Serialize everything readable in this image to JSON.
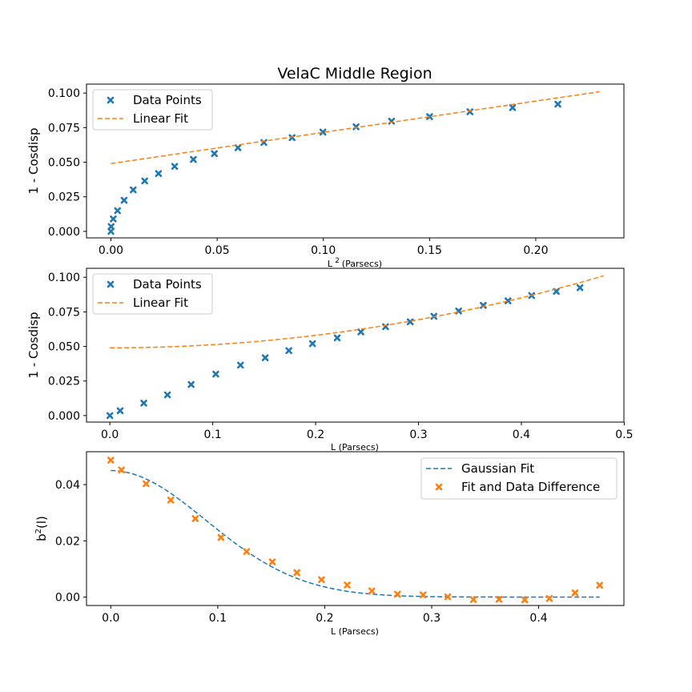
{
  "figure": {
    "title": "VelaC Middle Region"
  },
  "colors": {
    "blue": "#1f77b4",
    "orange": "#ff7f0e",
    "axis": "#000000",
    "legend_border": "#cccccc"
  },
  "chart_data": [
    {
      "type": "scatter",
      "xlabel_main": "L",
      "xlabel_sup": "2",
      "xlabel_rest": "(Parsecs)",
      "ylabel": "1 - Cosdisp",
      "xlim": [
        -0.0115,
        0.2415
      ],
      "ylim": [
        -0.0047,
        0.1065
      ],
      "xticks": [
        0.0,
        0.05,
        0.1,
        0.15,
        0.2
      ],
      "xtick_labels": [
        "0.00",
        "0.05",
        "0.10",
        "0.15",
        "0.20"
      ],
      "yticks": [
        0.0,
        0.025,
        0.05,
        0.075,
        0.1
      ],
      "ytick_labels": [
        "0.000",
        "0.025",
        "0.050",
        "0.075",
        "0.100"
      ],
      "legend_position": "upper-left",
      "series": [
        {
          "name": "Data Points",
          "kind": "markers",
          "color": "#1f77b4",
          "x": [
            0.0,
            0.0001,
            0.0011,
            0.0031,
            0.0062,
            0.0105,
            0.0159,
            0.0224,
            0.03,
            0.0388,
            0.0487,
            0.0598,
            0.072,
            0.0853,
            0.0998,
            0.1154,
            0.1321,
            0.15,
            0.169,
            0.1891,
            0.2104
          ],
          "y": [
            0.0,
            0.0035,
            0.009,
            0.015,
            0.0225,
            0.03,
            0.0365,
            0.0418,
            0.047,
            0.052,
            0.0562,
            0.0605,
            0.0643,
            0.0678,
            0.0718,
            0.0756,
            0.0797,
            0.083,
            0.0865,
            0.0895,
            0.092
          ]
        },
        {
          "name": "Linear Fit",
          "kind": "dashed-line",
          "color": "#ff7f0e",
          "x": [
            0.0,
            0.23
          ],
          "y": [
            0.049,
            0.101
          ]
        }
      ]
    },
    {
      "type": "scatter",
      "xlabel": "L (Parsecs)",
      "ylabel": "1 - Cosdisp",
      "xlim": [
        -0.0227,
        0.4997
      ],
      "ylim": [
        -0.0047,
        0.1065
      ],
      "xticks": [
        0.0,
        0.1,
        0.2,
        0.3,
        0.4,
        0.5
      ],
      "xtick_labels": [
        "0.0",
        "0.1",
        "0.2",
        "0.3",
        "0.4",
        "0.5"
      ],
      "yticks": [
        0.0,
        0.025,
        0.05,
        0.075,
        0.1
      ],
      "ytick_labels": [
        "0.000",
        "0.025",
        "0.050",
        "0.075",
        "0.100"
      ],
      "legend_position": "upper-left",
      "series": [
        {
          "name": "Data Points",
          "kind": "markers",
          "color": "#1f77b4",
          "x": [
            0.0,
            0.01,
            0.033,
            0.056,
            0.079,
            0.103,
            0.127,
            0.151,
            0.174,
            0.197,
            0.221,
            0.244,
            0.268,
            0.292,
            0.315,
            0.339,
            0.363,
            0.387,
            0.41,
            0.434,
            0.457
          ],
          "y": [
            0.0,
            0.0035,
            0.009,
            0.015,
            0.0225,
            0.03,
            0.0365,
            0.0418,
            0.047,
            0.052,
            0.0562,
            0.0605,
            0.0643,
            0.0678,
            0.0718,
            0.0756,
            0.0797,
            0.083,
            0.0868,
            0.0898,
            0.0925
          ]
        },
        {
          "name": "Linear Fit",
          "kind": "dashed-curve",
          "color": "#ff7f0e",
          "curve": {
            "intercept": 0.049,
            "slope_vs_x_squared": 0.2261,
            "x_start": 0.0,
            "x_end": 0.48
          }
        }
      ]
    },
    {
      "type": "scatter",
      "xlabel": "L (Parsecs)",
      "ylabel_main": "b",
      "ylabel_sup": "2",
      "ylabel_rest": "(l)",
      "xlim": [
        -0.0227,
        0.4797
      ],
      "ylim": [
        -0.003,
        0.0517
      ],
      "xticks": [
        0.0,
        0.1,
        0.2,
        0.3,
        0.4
      ],
      "xtick_labels": [
        "0.0",
        "0.1",
        "0.2",
        "0.3",
        "0.4"
      ],
      "yticks": [
        0.0,
        0.02,
        0.04
      ],
      "ytick_labels": [
        "0.00",
        "0.02",
        "0.04"
      ],
      "legend_position": "upper-right",
      "series": [
        {
          "name": "Gaussian Fit",
          "kind": "dashed-curve",
          "color": "#1f77b4",
          "curve": {
            "amplitude": 0.045,
            "sigma": 0.089,
            "x_start": 0.0,
            "x_end": 0.457
          }
        },
        {
          "name": "Fit and Data Difference",
          "kind": "markers",
          "color": "#ff7f0e",
          "x": [
            0.0,
            0.01,
            0.033,
            0.056,
            0.079,
            0.103,
            0.127,
            0.151,
            0.174,
            0.197,
            0.221,
            0.244,
            0.268,
            0.292,
            0.315,
            0.339,
            0.363,
            0.387,
            0.41,
            0.434,
            0.457
          ],
          "y": [
            0.0487,
            0.0452,
            0.0403,
            0.0345,
            0.0279,
            0.0212,
            0.0162,
            0.0125,
            0.0087,
            0.0062,
            0.0043,
            0.0022,
            0.001,
            0.0008,
            0.0001,
            -0.0009,
            -0.0008,
            -0.001,
            -0.0005,
            0.0015,
            0.0042
          ]
        }
      ]
    }
  ]
}
